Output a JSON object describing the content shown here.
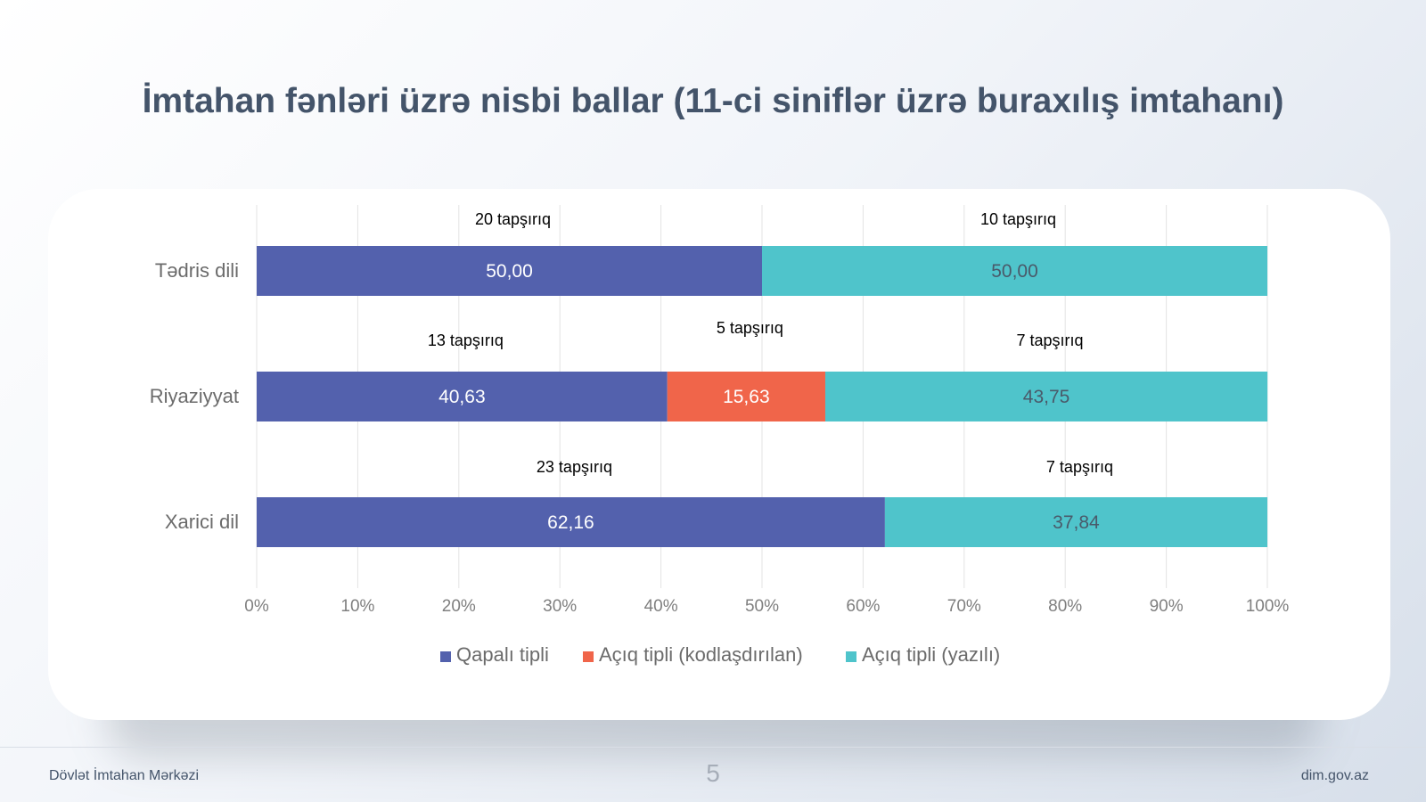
{
  "slide": {
    "title": "İmtahan fənləri üzrə nisbi ballar (11-ci siniflər üzrə buraxılış imtahanı)",
    "footer_left": "Dövlət İmtahan Mərkəzi",
    "page_number": "5",
    "footer_right": "dim.gov.az"
  },
  "chart_data": {
    "type": "bar",
    "orientation": "horizontal",
    "stacked": "percent",
    "title": "",
    "xlabel": "",
    "ylabel": "",
    "xlim": [
      0,
      100
    ],
    "x_ticks": [
      "0%",
      "10%",
      "20%",
      "30%",
      "40%",
      "50%",
      "60%",
      "70%",
      "80%",
      "90%",
      "100%"
    ],
    "grid": true,
    "legend_position": "bottom",
    "categories": [
      "Tədris dili",
      "Riyaziyyat",
      "Xarici dil"
    ],
    "series": [
      {
        "name": "Qapalı tipli",
        "color": "#5361ad",
        "values": [
          50.0,
          40.63,
          62.16
        ],
        "labels": [
          "50,00",
          "40,63",
          "62,16"
        ],
        "label_color": "#ffffff",
        "annotations": [
          "20 tapşırıq",
          "13 tapşırıq",
          "23 tapşırıq"
        ]
      },
      {
        "name": "Açıq tipli (kodlaşdırılan)",
        "color": "#f0654a",
        "values": [
          0,
          15.63,
          0
        ],
        "labels": [
          "",
          "15,63",
          ""
        ],
        "label_color": "#ffffff",
        "annotations": [
          "",
          "5 tapşırıq",
          ""
        ]
      },
      {
        "name": "Açıq tipli (yazılı)",
        "color": "#4fc4cb",
        "values": [
          50.0,
          43.75,
          37.84
        ],
        "labels": [
          "50,00",
          "43,75",
          "37,84"
        ],
        "label_color": "#4a5a6a",
        "annotations": [
          "10 tapşırıq",
          "7 tapşırıq",
          "7 tapşırıq"
        ]
      }
    ]
  }
}
